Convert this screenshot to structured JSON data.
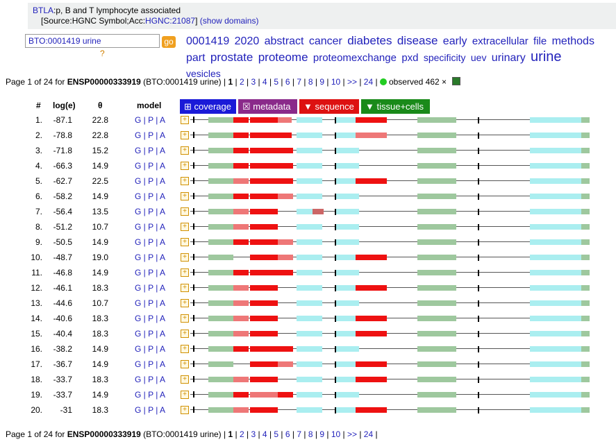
{
  "header": {
    "gene_link": "BTLA",
    "gene_desc": ":p, B and T lymphocyte associated",
    "source_prefix": "[Source:HGNC Symbol;Acc:",
    "source_acc": "HGNC:21087",
    "source_suffix": "]",
    "show_domains": "(show domains)"
  },
  "search": {
    "value": "BTO:0001419 urine",
    "go_label": "go",
    "help": "?"
  },
  "tag_cloud": [
    {
      "text": "0001419",
      "size": 16
    },
    {
      "text": "2020",
      "size": 16
    },
    {
      "text": "abstract",
      "size": 16
    },
    {
      "text": "cancer",
      "size": 16
    },
    {
      "text": "diabetes",
      "size": 17
    },
    {
      "text": "disease",
      "size": 17
    },
    {
      "text": "early",
      "size": 16
    },
    {
      "text": "extracellular",
      "size": 15
    },
    {
      "text": "file",
      "size": 15
    },
    {
      "text": "methods",
      "size": 16
    },
    {
      "text": "part",
      "size": 16
    },
    {
      "text": "prostate",
      "size": 17
    },
    {
      "text": "proteome",
      "size": 17
    },
    {
      "text": "proteomexchange",
      "size": 15
    },
    {
      "text": "pxd",
      "size": 15
    },
    {
      "text": "specificity",
      "size": 14
    },
    {
      "text": "uev",
      "size": 14
    },
    {
      "text": "urinary",
      "size": 16
    },
    {
      "text": "urine",
      "size": 20
    },
    {
      "text": "vesicles",
      "size": 14
    }
  ],
  "pager": {
    "prefix": "Page 1 of 24 for ",
    "protein": "ENSP00000333919",
    "context": " (BTO:0001419 urine) | ",
    "current": "1",
    "pages": [
      "2",
      "3",
      "4",
      "5",
      "6",
      "7",
      "8",
      "9",
      "10",
      ">>",
      "24"
    ],
    "observed_label": "observed 462 ×"
  },
  "columns": {
    "num": "#",
    "loge": "log(e)",
    "theta": "θ",
    "model": "model"
  },
  "tabs": [
    {
      "label": "⊞ coverage",
      "color": "#1a1ad8"
    },
    {
      "label": "☒ metadata",
      "color": "#8a2a8a"
    },
    {
      "label": "▼ sequence",
      "color": "#dd1111"
    },
    {
      "label": "▼ tissue+cells",
      "color": "#1a8a1a"
    }
  ],
  "model_links": "G | P | A",
  "rows": [
    {
      "n": "1.",
      "loge": "-87.1",
      "theta": "22.8",
      "segs": "A"
    },
    {
      "n": "2.",
      "loge": "-78.8",
      "theta": "22.8",
      "segs": "B"
    },
    {
      "n": "3.",
      "loge": "-71.8",
      "theta": "15.2",
      "segs": "C"
    },
    {
      "n": "4.",
      "loge": "-66.3",
      "theta": "14.9",
      "segs": "C"
    },
    {
      "n": "5.",
      "loge": "-62.7",
      "theta": "22.5",
      "segs": "D"
    },
    {
      "n": "6.",
      "loge": "-58.2",
      "theta": "14.9",
      "segs": "E"
    },
    {
      "n": "7.",
      "loge": "-56.4",
      "theta": "13.5",
      "segs": "F"
    },
    {
      "n": "8.",
      "loge": "-51.2",
      "theta": "10.7",
      "segs": "G"
    },
    {
      "n": "9.",
      "loge": "-50.5",
      "theta": "14.9",
      "segs": "E"
    },
    {
      "n": "10.",
      "loge": "-48.7",
      "theta": "19.0",
      "segs": "H"
    },
    {
      "n": "11.",
      "loge": "-46.8",
      "theta": "14.9",
      "segs": "C"
    },
    {
      "n": "12.",
      "loge": "-46.1",
      "theta": "18.3",
      "segs": "I"
    },
    {
      "n": "13.",
      "loge": "-44.6",
      "theta": "10.7",
      "segs": "G"
    },
    {
      "n": "14.",
      "loge": "-40.6",
      "theta": "18.3",
      "segs": "I"
    },
    {
      "n": "15.",
      "loge": "-40.4",
      "theta": "18.3",
      "segs": "I"
    },
    {
      "n": "16.",
      "loge": "-38.2",
      "theta": "14.9",
      "segs": "J"
    },
    {
      "n": "17.",
      "loge": "-36.7",
      "theta": "14.9",
      "segs": "H"
    },
    {
      "n": "18.",
      "loge": "-33.7",
      "theta": "18.3",
      "segs": "I"
    },
    {
      "n": "19.",
      "loge": "-33.7",
      "theta": "14.9",
      "segs": "K"
    },
    {
      "n": "20.",
      "loge": "-31",
      "theta": "18.3",
      "segs": "I"
    }
  ]
}
